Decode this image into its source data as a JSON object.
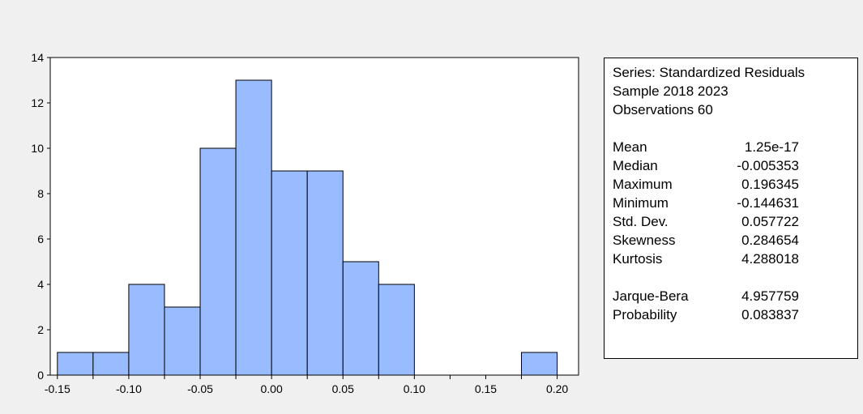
{
  "chart_data": {
    "type": "bar",
    "bins": [
      {
        "from": -0.15,
        "to": -0.125,
        "count": 1
      },
      {
        "from": -0.125,
        "to": -0.1,
        "count": 1
      },
      {
        "from": -0.1,
        "to": -0.075,
        "count": 4
      },
      {
        "from": -0.075,
        "to": -0.05,
        "count": 3
      },
      {
        "from": -0.05,
        "to": -0.025,
        "count": 10
      },
      {
        "from": -0.025,
        "to": 0.0,
        "count": 13
      },
      {
        "from": 0.0,
        "to": 0.025,
        "count": 9
      },
      {
        "from": 0.025,
        "to": 0.05,
        "count": 9
      },
      {
        "from": 0.05,
        "to": 0.075,
        "count": 5
      },
      {
        "from": 0.075,
        "to": 0.1,
        "count": 4
      },
      {
        "from": 0.1,
        "to": 0.125,
        "count": 0
      },
      {
        "from": 0.125,
        "to": 0.15,
        "count": 0
      },
      {
        "from": 0.15,
        "to": 0.175,
        "count": 0
      },
      {
        "from": 0.175,
        "to": 0.2,
        "count": 1
      }
    ],
    "xlim": [
      -0.155,
      0.215
    ],
    "ylim": [
      0,
      14
    ],
    "x_ticks": [
      "-0.15",
      "-0.10",
      "-0.05",
      "0.00",
      "0.05",
      "0.10",
      "0.15",
      "0.20"
    ],
    "x_tick_values": [
      -0.15,
      -0.1,
      -0.05,
      0.0,
      0.05,
      0.1,
      0.15,
      0.2
    ],
    "y_ticks": [
      "0",
      "2",
      "4",
      "6",
      "8",
      "10",
      "12",
      "14"
    ],
    "y_tick_values": [
      0,
      2,
      4,
      6,
      8,
      10,
      12,
      14
    ],
    "bar_color": "#99bbff",
    "grid": false
  },
  "stats": {
    "series": "Series: Standardized Residuals",
    "sample": "Sample 2018 2023",
    "observations": "Observations 60",
    "rows": [
      {
        "label": "Mean",
        "value": "1.25e-17"
      },
      {
        "label": "Median",
        "value": "-0.005353"
      },
      {
        "label": "Maximum",
        "value": "0.196345"
      },
      {
        "label": "Minimum",
        "value": "-0.144631"
      },
      {
        "label": "Std. Dev.",
        "value": "0.057722"
      },
      {
        "label": "Skewness",
        "value": "0.284654"
      },
      {
        "label": "Kurtosis",
        "value": "4.288018"
      }
    ],
    "test_rows": [
      {
        "label": "Jarque-Bera",
        "value": "4.957759"
      },
      {
        "label": "Probability",
        "value": "0.083837"
      }
    ]
  }
}
